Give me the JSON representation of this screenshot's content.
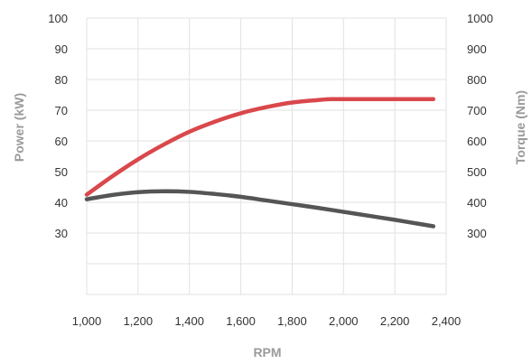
{
  "chart_data": {
    "type": "line",
    "xlabel": "RPM",
    "ylabel_left": "Power (kW)",
    "ylabel_right": "Torque (Nm)",
    "xlim": [
      1000,
      2400
    ],
    "x_ticks": [
      "1,000",
      "1,200",
      "1,400",
      "1,600",
      "1,800",
      "2,000",
      "2,200",
      "2,400"
    ],
    "y_left_ticks": [
      "100",
      "90",
      "80",
      "70",
      "60",
      "50",
      "40",
      "30"
    ],
    "y_right_ticks": [
      "1000",
      "900",
      "800",
      "700",
      "600",
      "500",
      "400",
      "300"
    ],
    "y_left_range": [
      10,
      100
    ],
    "y_right_range": [
      100,
      1000
    ],
    "grid": true,
    "series": [
      {
        "axis": "left",
        "color": "#d9484b",
        "x": [
          1000,
          1100,
          1200,
          1300,
          1400,
          1500,
          1600,
          1700,
          1800,
          1900,
          1950,
          2000,
          2100,
          2200,
          2300,
          2350
        ],
        "y": [
          42.5,
          48.5,
          54,
          58.8,
          63,
          66.3,
          69,
          71,
          72.5,
          73.3,
          73.6,
          73.6,
          73.6,
          73.6,
          73.6,
          73.6
        ]
      },
      {
        "axis": "right",
        "color": "#555555",
        "x": [
          1000,
          1100,
          1200,
          1300,
          1400,
          1500,
          1600,
          1700,
          1800,
          1900,
          2000,
          2100,
          2200,
          2300,
          2350
        ],
        "y": [
          410,
          424,
          433,
          436,
          434,
          427,
          418,
          406,
          394,
          382,
          369,
          356,
          343,
          329,
          322
        ]
      }
    ]
  }
}
